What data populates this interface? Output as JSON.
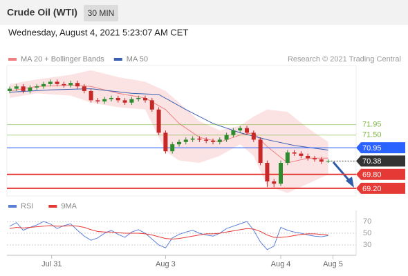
{
  "header": {
    "title": "Crude Oil (WTI)",
    "timeframe": "30 MIN",
    "date": "Wednesday, August 4, 2021 5:23:07 AM CET"
  },
  "credit": "Research © 2021 Trading Central",
  "chart_data": [
    {
      "type": "candlestick",
      "up_color": "#2e8b2e",
      "down_color": "#c62828",
      "open": [
        73.4,
        73.5,
        73.6,
        73.4,
        73.55,
        73.6,
        73.7,
        73.8,
        73.7,
        73.65,
        73.75,
        73.6,
        73.4,
        73.0,
        72.95,
        73.05,
        73.1,
        73.0,
        72.9,
        73.05,
        73.1,
        73.0,
        72.6,
        71.6,
        70.8,
        71.1,
        71.2,
        71.3,
        71.35,
        71.3,
        71.25,
        71.2,
        71.3,
        71.5,
        71.7,
        71.8,
        71.6,
        71.3,
        70.3,
        69.5,
        69.4,
        70.3,
        70.75,
        70.7,
        70.6,
        70.5,
        70.45,
        70.35
      ],
      "high": [
        73.6,
        73.7,
        73.7,
        73.65,
        73.7,
        73.8,
        73.9,
        73.9,
        73.8,
        73.85,
        73.85,
        73.7,
        73.5,
        73.1,
        73.15,
        73.2,
        73.2,
        73.1,
        73.15,
        73.2,
        73.2,
        73.1,
        72.7,
        71.7,
        71.2,
        71.3,
        71.4,
        71.45,
        71.45,
        71.4,
        71.35,
        71.4,
        71.6,
        71.8,
        71.9,
        71.9,
        71.7,
        71.4,
        70.4,
        69.6,
        70.4,
        70.85,
        70.85,
        70.8,
        70.7,
        70.6,
        70.55,
        70.45
      ],
      "low": [
        73.3,
        73.4,
        73.3,
        73.3,
        73.45,
        73.5,
        73.6,
        73.6,
        73.55,
        73.55,
        73.5,
        73.3,
        72.9,
        72.85,
        72.85,
        72.95,
        72.9,
        72.8,
        72.8,
        72.95,
        72.9,
        72.5,
        71.5,
        70.7,
        70.7,
        71.0,
        71.1,
        71.2,
        71.2,
        71.15,
        71.1,
        71.1,
        71.2,
        71.4,
        71.6,
        71.5,
        71.2,
        70.2,
        69.25,
        69.25,
        69.3,
        70.2,
        70.6,
        70.5,
        70.4,
        70.35,
        70.25,
        70.3
      ],
      "close": [
        73.5,
        73.6,
        73.4,
        73.55,
        73.6,
        73.7,
        73.8,
        73.7,
        73.65,
        73.75,
        73.6,
        73.4,
        73.0,
        72.95,
        73.05,
        73.1,
        73.0,
        72.9,
        73.05,
        73.1,
        73.0,
        72.6,
        71.6,
        70.8,
        71.1,
        71.2,
        71.3,
        71.35,
        71.3,
        71.25,
        71.2,
        71.3,
        71.5,
        71.7,
        71.8,
        71.6,
        71.3,
        70.3,
        69.5,
        69.4,
        70.3,
        70.75,
        70.7,
        70.6,
        70.5,
        70.45,
        70.35,
        70.38
      ],
      "overlays": [
        {
          "name": "MA 20 + Bollinger Bands",
          "color": "#f08080",
          "x": [
            0,
            4,
            9,
            12,
            16,
            20,
            23,
            25,
            28,
            31,
            34,
            36,
            38,
            41,
            44,
            47
          ],
          "values": [
            73.4,
            73.6,
            73.65,
            73.6,
            73.3,
            73.1,
            72.6,
            72.0,
            71.4,
            71.2,
            71.5,
            71.6,
            71.0,
            70.3,
            70.5,
            70.5
          ],
          "upper": [
            73.7,
            73.9,
            74.1,
            74.3,
            74.0,
            73.8,
            73.4,
            72.9,
            72.1,
            71.7,
            71.9,
            72.3,
            72.6,
            72.5,
            71.8,
            71.2
          ],
          "lower": [
            73.1,
            73.3,
            73.2,
            72.9,
            72.7,
            72.6,
            70.8,
            70.4,
            70.3,
            70.6,
            71.1,
            70.6,
            69.3,
            69.0,
            69.4,
            69.8
          ]
        },
        {
          "name": "MA 50",
          "color": "#3a5fb0",
          "x": [
            0,
            6,
            12,
            18,
            22,
            26,
            30,
            34,
            38,
            42,
            47
          ],
          "values": [
            73.35,
            73.45,
            73.5,
            73.3,
            73.25,
            72.6,
            72.0,
            71.6,
            71.3,
            71.05,
            70.85
          ]
        }
      ],
      "levels": [
        {
          "value": 71.95,
          "label": "71.95",
          "color": "#7cb342",
          "style": "text"
        },
        {
          "value": 71.5,
          "label": "71.50",
          "color": "#7cb342",
          "style": "text"
        },
        {
          "value": 70.95,
          "label": "70.95",
          "color": "#2962ff",
          "style": "badge"
        },
        {
          "value": 70.38,
          "label": "70.38",
          "color": "#333333",
          "style": "current"
        },
        {
          "value": 69.8,
          "label": "69.80",
          "color": "#e53935",
          "style": "badge"
        },
        {
          "value": 69.2,
          "label": "69.20",
          "color": "#e53935",
          "style": "badge"
        }
      ],
      "ylim": [
        68.9,
        74.5
      ]
    },
    {
      "type": "line",
      "series": [
        {
          "name": "RSI",
          "color": "#5b7fd6",
          "values": [
            62,
            68,
            55,
            60,
            64,
            70,
            66,
            58,
            63,
            66,
            55,
            45,
            38,
            42,
            50,
            55,
            48,
            43,
            52,
            56,
            50,
            40,
            30,
            25,
            42,
            48,
            52,
            55,
            50,
            47,
            45,
            50,
            58,
            62,
            66,
            70,
            55,
            35,
            22,
            28,
            60,
            55,
            52,
            50,
            47,
            45,
            44,
            46
          ]
        },
        {
          "name": "9MA",
          "color": "#e53935",
          "values": [
            58,
            60,
            59,
            60,
            61,
            62,
            63,
            62,
            62,
            63,
            62,
            60,
            56,
            53,
            52,
            52,
            51,
            50,
            50,
            50,
            49,
            47,
            44,
            41,
            40,
            41,
            43,
            45,
            47,
            49,
            49,
            50,
            52,
            54,
            56,
            58,
            57,
            53,
            47,
            43,
            43,
            44,
            46,
            48,
            49,
            49,
            48,
            47
          ]
        }
      ],
      "ylim": [
        10,
        88
      ],
      "yticks": [
        70,
        50,
        30
      ],
      "xticks": [
        {
          "value": 6.2,
          "label": "Jul 31"
        },
        {
          "value": 23,
          "label": "Aug 3"
        },
        {
          "value": 40,
          "label": "Aug 4"
        },
        {
          "value": 47.7,
          "label": "Aug 5"
        }
      ]
    }
  ]
}
